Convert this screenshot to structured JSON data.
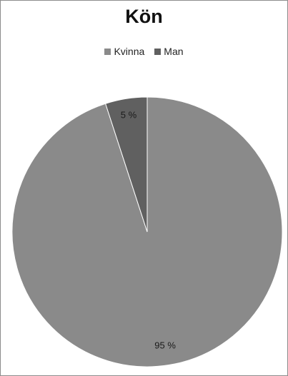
{
  "chart_data": {
    "type": "pie",
    "title": "Kön",
    "legend_position": "top",
    "slices": [
      {
        "name": "Kvinna",
        "value": 95,
        "label": "95 %",
        "color": "#8a8a8a"
      },
      {
        "name": "Man",
        "value": 5,
        "label": "5 %",
        "color": "#606060"
      }
    ]
  }
}
